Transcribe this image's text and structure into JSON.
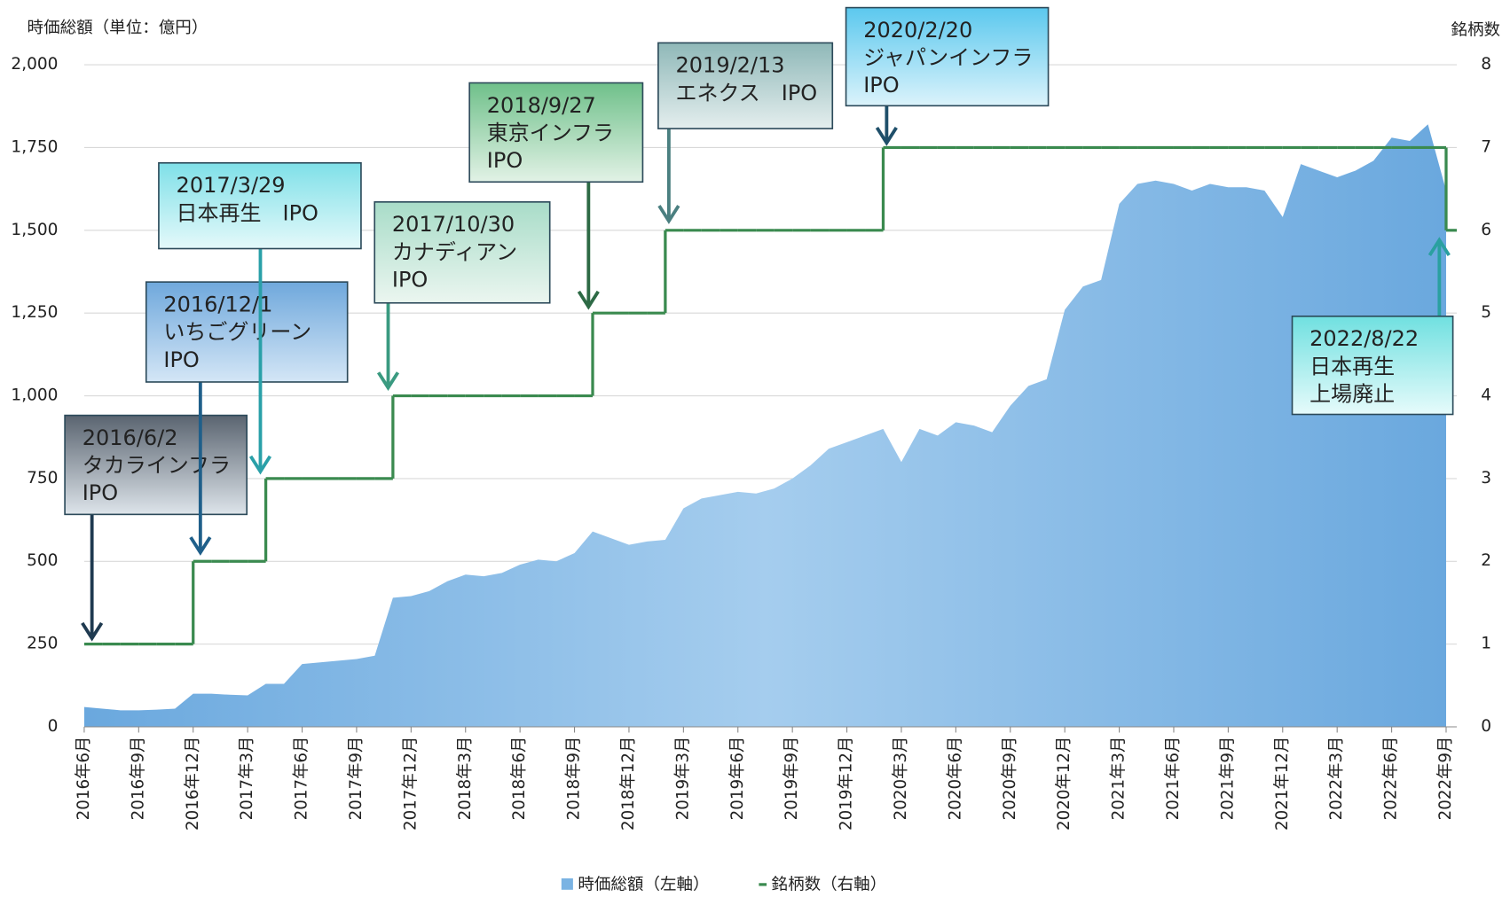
{
  "chart_data": {
    "type": "area-step",
    "y_axis_label": "時価総額（単位：億円）",
    "y2_axis_label": "銘柄数",
    "categories": [
      "2016年6月",
      null,
      null,
      "2016年9月",
      null,
      null,
      "2016年12月",
      null,
      null,
      "2017年3月",
      null,
      null,
      "2017年6月",
      null,
      null,
      "2017年9月",
      null,
      null,
      "2017年12月",
      null,
      null,
      "2018年3月",
      null,
      null,
      "2018年6月",
      null,
      null,
      "2018年9月",
      null,
      null,
      "2018年12月",
      null,
      null,
      "2019年3月",
      null,
      null,
      "2019年6月",
      null,
      null,
      "2019年9月",
      null,
      null,
      "2019年12月",
      null,
      null,
      "2020年3月",
      null,
      null,
      "2020年6月",
      null,
      null,
      "2020年9月",
      null,
      null,
      "2020年12月",
      null,
      null,
      "2021年3月",
      null,
      null,
      "2021年6月",
      null,
      null,
      "2021年9月",
      null,
      null,
      "2021年12月",
      null,
      null,
      "2022年3月",
      null,
      null,
      "2022年6月",
      null,
      null,
      "2022年9月"
    ],
    "series": [
      {
        "name": "時価総額（左軸）",
        "color": "#7ab3e3",
        "axis": "y",
        "values": [
          60,
          55,
          50,
          50,
          52,
          55,
          100,
          100,
          97,
          95,
          130,
          130,
          190,
          195,
          200,
          205,
          215,
          390,
          395,
          410,
          440,
          460,
          455,
          465,
          490,
          505,
          500,
          525,
          590,
          570,
          550,
          560,
          565,
          660,
          690,
          700,
          710,
          705,
          720,
          750,
          790,
          840,
          860,
          880,
          900,
          800,
          900,
          880,
          920,
          910,
          890,
          970,
          1030,
          1050,
          1260,
          1330,
          1350,
          1580,
          1640,
          1650,
          1640,
          1620,
          1640,
          1630,
          1630,
          1620,
          1540,
          1700,
          1680,
          1660,
          1680,
          1710,
          1780,
          1770,
          1820,
          1620
        ]
      },
      {
        "name": "銘柄数（右軸）",
        "color": "#3a8a4f",
        "axis": "y2",
        "values": [
          1,
          1,
          1,
          1,
          1,
          1,
          2,
          2,
          2,
          2,
          3,
          3,
          3,
          3,
          3,
          3,
          3,
          4,
          4,
          4,
          4,
          4,
          4,
          4,
          4,
          4,
          4,
          4,
          5,
          5,
          5,
          5,
          6,
          6,
          6,
          6,
          6,
          6,
          6,
          6,
          6,
          6,
          6,
          6,
          7,
          7,
          7,
          7,
          7,
          7,
          7,
          7,
          7,
          7,
          7,
          7,
          7,
          7,
          7,
          7,
          7,
          7,
          7,
          7,
          7,
          7,
          7,
          7,
          7,
          7,
          7,
          7,
          7,
          7,
          7,
          6
        ]
      }
    ],
    "ylim": [
      0,
      2000
    ],
    "yticks": [
      0,
      250,
      500,
      750,
      {
        "value": 1000,
        "label": "1,000"
      },
      {
        "value": 1250,
        "label": "1,250"
      },
      {
        "value": 1500,
        "label": "1,500"
      },
      {
        "value": 1750,
        "label": "1,750"
      },
      {
        "value": 2000,
        "label": "2,000"
      }
    ],
    "y2lim": [
      0,
      8
    ],
    "y2ticks": [
      0,
      1,
      2,
      3,
      4,
      5,
      6,
      7,
      8
    ],
    "grid": true,
    "annotations": [
      {
        "lines": [
          "2016/6/2",
          "タカラインフラ",
          "IPO"
        ]
      },
      {
        "lines": [
          "2016/12/1",
          "いちごグリーン",
          "IPO"
        ]
      },
      {
        "lines": [
          "2017/3/29",
          "日本再生　IPO"
        ]
      },
      {
        "lines": [
          "2017/10/30",
          "カナディアン",
          "IPO"
        ]
      },
      {
        "lines": [
          "2018/9/27",
          "東京インフラ",
          "IPO"
        ]
      },
      {
        "lines": [
          "2019/2/13",
          "エネクス　IPO"
        ]
      },
      {
        "lines": [
          "2020/2/20",
          "ジャパンインフラ",
          "IPO"
        ]
      },
      {
        "lines": [
          "2022/8/22",
          "日本再生",
          "上場廃止"
        ]
      }
    ]
  }
}
